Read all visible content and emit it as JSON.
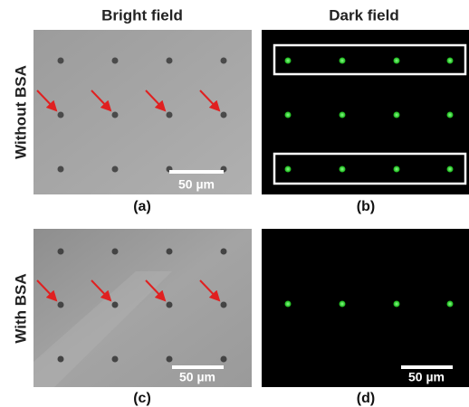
{
  "columns": [
    "Bright field",
    "Dark field"
  ],
  "rows": [
    "Without BSA",
    "With BSA"
  ],
  "panels": [
    {
      "label": "(a)",
      "scale_bar": "50 µm"
    },
    {
      "label": "(b)"
    },
    {
      "label": "(c)",
      "scale_bar": "50 µm"
    },
    {
      "label": "(d)",
      "scale_bar": "50 µm"
    }
  ]
}
